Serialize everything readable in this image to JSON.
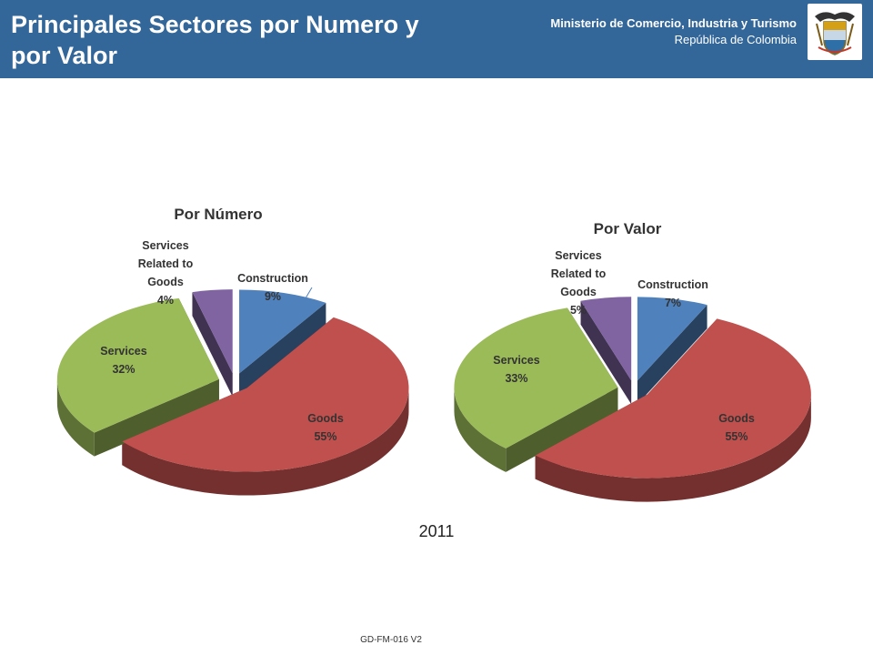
{
  "header": {
    "title": "Principales Sectores por Numero y por Valor",
    "ministry": "Ministerio de Comercio, Industria y Turismo",
    "country": "República de Colombia",
    "bg_color": "#336699",
    "seal_icon": "coat-of-arms-icon"
  },
  "chart_data": [
    {
      "type": "pie",
      "title": "Por Número",
      "slices": [
        {
          "label": [
            "Construction"
          ],
          "value": 9,
          "display": "9%",
          "color": "#4F81BD"
        },
        {
          "label": [
            "Goods"
          ],
          "value": 55,
          "display": "55%",
          "color": "#C0504D"
        },
        {
          "label": [
            "Services"
          ],
          "value": 32,
          "display": "32%",
          "color": "#9BBB59"
        },
        {
          "label": [
            "Services",
            "Related to",
            "Goods"
          ],
          "value": 4,
          "display": "4%",
          "color": "#8064A2"
        }
      ]
    },
    {
      "type": "pie",
      "title": "Por Valor",
      "slices": [
        {
          "label": [
            "Construction"
          ],
          "value": 7,
          "display": "7%",
          "color": "#4F81BD"
        },
        {
          "label": [
            "Goods"
          ],
          "value": 55,
          "display": "55%",
          "color": "#C0504D"
        },
        {
          "label": [
            "Services"
          ],
          "value": 33,
          "display": "33%",
          "color": "#9BBB59"
        },
        {
          "label": [
            "Services",
            "Related to",
            "Goods"
          ],
          "value": 5,
          "display": "5%",
          "color": "#8064A2"
        }
      ]
    }
  ],
  "year": "2011",
  "footer": {
    "code": "GD-FM-016 V2"
  }
}
